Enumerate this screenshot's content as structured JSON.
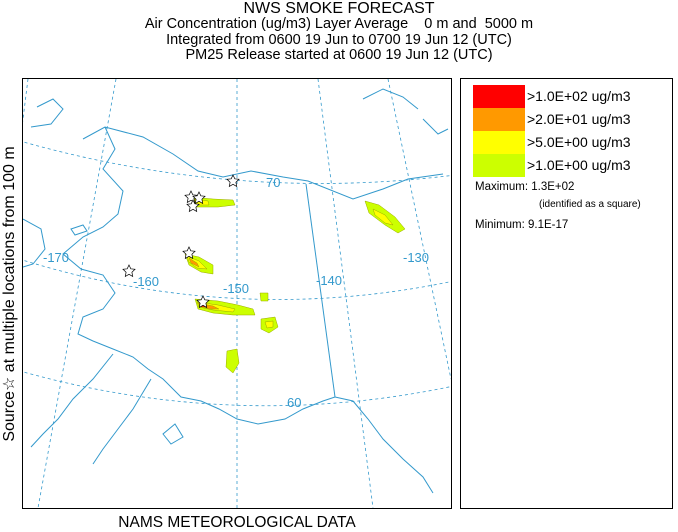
{
  "header": {
    "title": "NWS SMOKE FORECAST",
    "line2": "Air Concentration (ug/m3) Layer Average    0 m and  5000 m",
    "line3": "Integrated from 0600 19 Jun to 0700 19 Jun 12 (UTC)",
    "line4": "PM25 Release started at 0600 19 Jun 12 (UTC)"
  },
  "side_label": "Source☆ at multiple locations   from  100 m",
  "footer": "NAMS METEOROLOGICAL DATA",
  "map": {
    "graticule_labels": {
      "lon_170": "-170",
      "lon_160": "-160",
      "lon_150": "-150",
      "lon_140": "-140",
      "lon_130": "-130",
      "lat_70": "70",
      "lat_60": "60"
    },
    "colors": {
      "grid": "#3399cc",
      "coast": "#3399cc",
      "level_1": "#ff0000",
      "level_2": "#ff9900",
      "level_3": "#ffff00",
      "level_4": "#ccff00"
    },
    "source_marker": "star-icon"
  },
  "legend": {
    "items": [
      {
        "label": ">1.0E+02 ug/m3",
        "color": "#ff0000"
      },
      {
        "label": ">2.0E+01 ug/m3",
        "color": "#ff9900"
      },
      {
        "label": ">5.0E+00 ug/m3",
        "color": "#ffff00"
      },
      {
        "label": ">1.0E+00 ug/m3",
        "color": "#ccff00"
      }
    ],
    "maximum": "Maximum: 1.3E+02",
    "maximum_note": "(identified as a square)",
    "minimum": "Minimum: 9.1E-17"
  }
}
